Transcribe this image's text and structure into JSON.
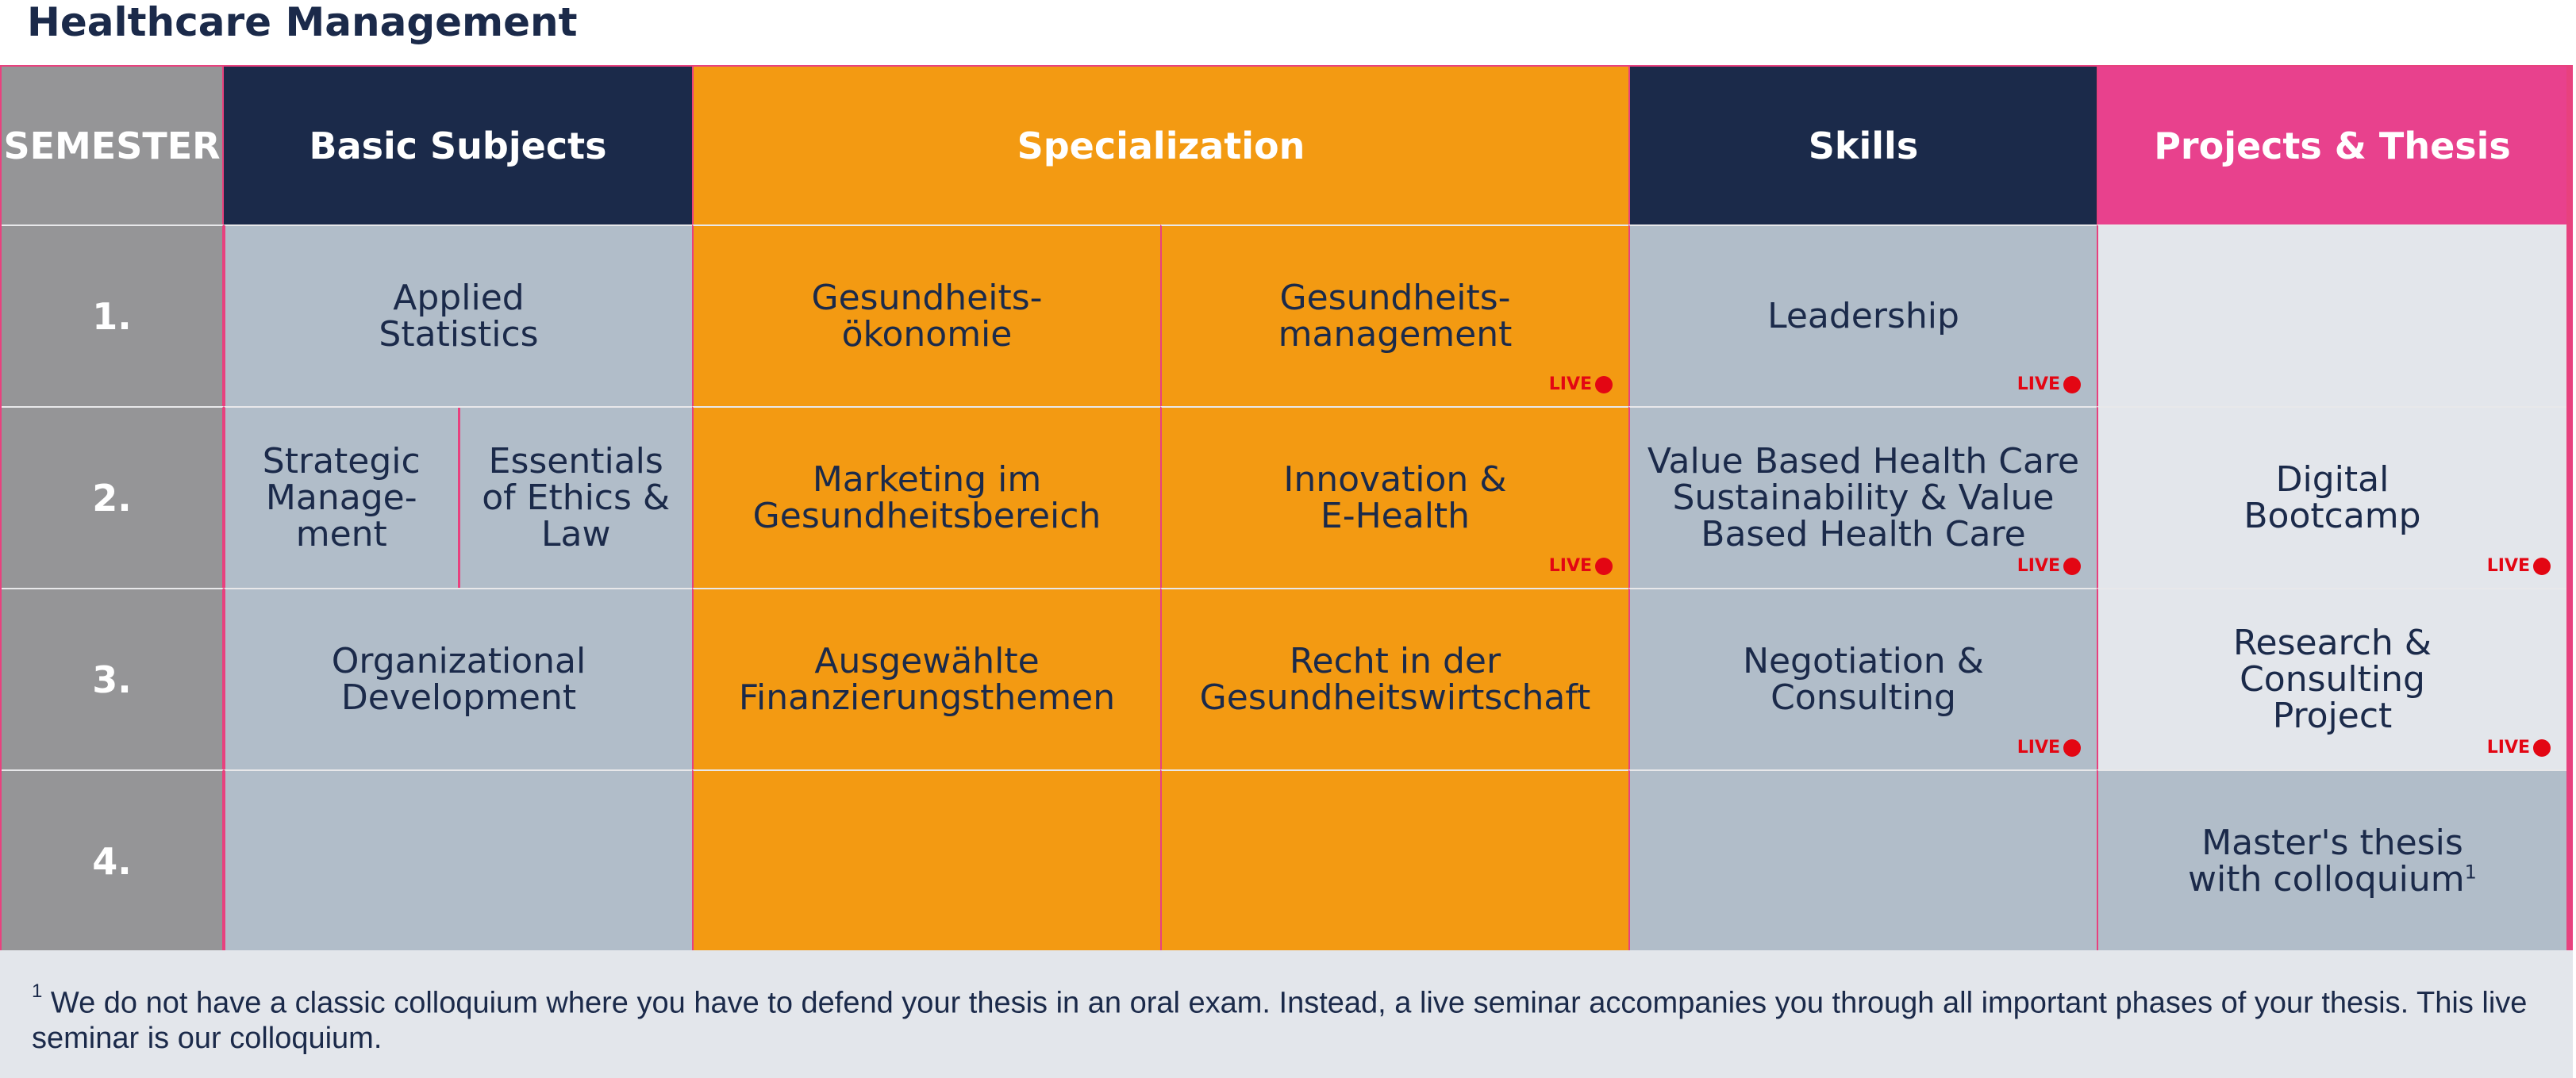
{
  "title": "Healthcare Management",
  "headers": {
    "semester": "SEMESTER",
    "basic": "Basic Subjects",
    "specialization": "Specialization",
    "skills": "Skills",
    "projects": "Projects & Thesis"
  },
  "semesters": [
    "1.",
    "2.",
    "3.",
    "4."
  ],
  "rows": {
    "r1": {
      "basic": "Applied\nStatistics",
      "spec_a": "Gesundheits-\nökonomie",
      "spec_b": "Gesundheits-\nmanagement",
      "skills": "Leadership",
      "projects": ""
    },
    "r2": {
      "basic_a": "Strategic\nManage-\nment",
      "basic_b": "Essentials\nof Ethics &\nLaw",
      "spec_a": "Marketing im\nGesundheitsbereich",
      "spec_b": "Innovation &\nE-Health",
      "skills": "Value Based Health Care\nSustainability & Value\nBased Health Care",
      "projects": "Digital\nBootcamp"
    },
    "r3": {
      "basic": "Organizational\nDevelopment",
      "spec_a": "Ausgewählte\nFinanzierungsthemen",
      "spec_b": "Recht in der\nGesundheitswirtschaft",
      "skills": "Negotiation &\nConsulting",
      "projects": "Research &\nConsulting\nProject"
    },
    "r4": {
      "projects_line1": "Master's thesis",
      "projects_line2": "with colloquium",
      "projects_sup": "1"
    }
  },
  "live_label": "LIVE",
  "footnote": {
    "marker": "1",
    "text": "We do not have a classic colloquium where you have to defend your thesis in an oral exam. Instead, a live seminar accompanies you through all important phases of your thesis. This live seminar is our colloquium."
  },
  "colors": {
    "navy": "#1b2a4a",
    "orange": "#f39a12",
    "pink": "#e8418d",
    "gray": "#b1bdc9",
    "light": "#e3e6eb",
    "live_red": "#e30613"
  }
}
